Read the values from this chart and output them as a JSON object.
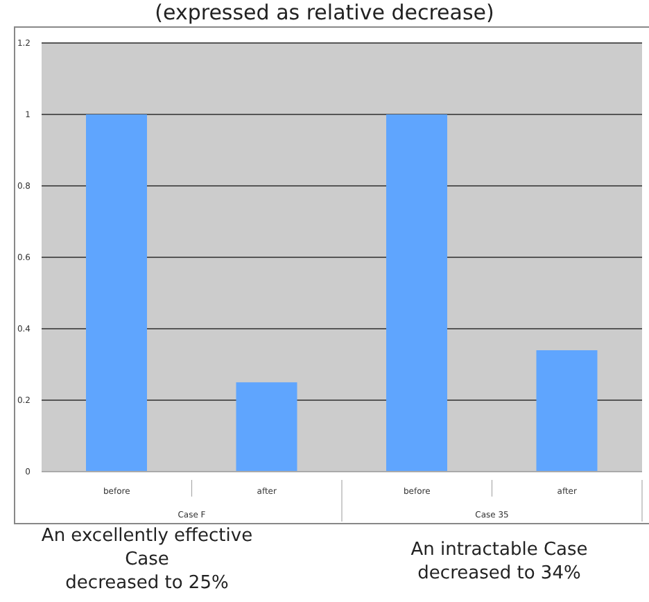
{
  "chart_data": {
    "type": "bar",
    "title": "(expressed as relative decrease)",
    "categories": [
      "before",
      "after",
      "before",
      "after"
    ],
    "values": [
      1,
      0.25,
      1,
      0.34
    ],
    "color": "#5fa5fe",
    "ylim": [
      0,
      1.2
    ],
    "yticks": [
      0,
      0.2,
      0.4,
      0.6,
      0.8,
      1,
      1.2
    ],
    "grid": "y",
    "annotations": [
      "Case F",
      "Case 35",
      "An excellently effective\nCase\ndecreased to 25%",
      "An intractable Case\ndecreased to 34%"
    ]
  }
}
